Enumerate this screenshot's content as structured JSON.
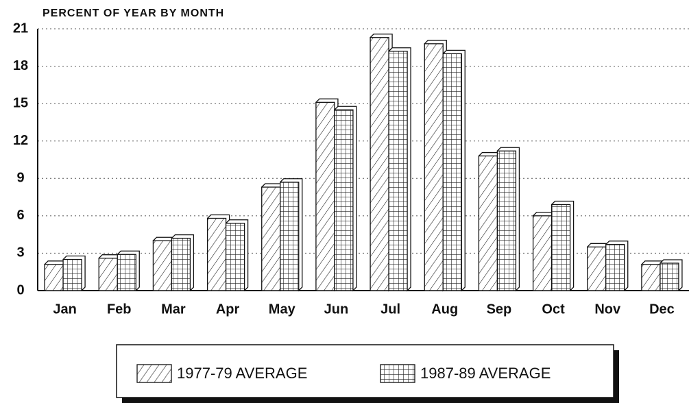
{
  "chart_data": {
    "type": "bar",
    "title": "PERCENT OF YEAR BY MONTH",
    "categories": [
      "Jan",
      "Feb",
      "Mar",
      "Apr",
      "May",
      "Jun",
      "Jul",
      "Aug",
      "Sep",
      "Oct",
      "Nov",
      "Dec"
    ],
    "series": [
      {
        "name": "1977-79 AVERAGE",
        "color": "#ffffff",
        "pattern": "hatch",
        "values": [
          2.1,
          2.6,
          4.0,
          5.8,
          8.3,
          15.1,
          20.3,
          19.8,
          10.8,
          6.0,
          3.5,
          2.1
        ]
      },
      {
        "name": "1987-89 AVERAGE",
        "color": "#ffffff",
        "pattern": "grid",
        "values": [
          2.5,
          2.9,
          4.2,
          5.4,
          8.7,
          14.5,
          19.2,
          19.0,
          11.2,
          6.9,
          3.7,
          2.2
        ]
      }
    ],
    "ylim": [
      0,
      21
    ],
    "yticks": [
      0,
      3,
      6,
      9,
      12,
      15,
      18,
      21
    ],
    "grid": true,
    "legend": "bottom"
  }
}
